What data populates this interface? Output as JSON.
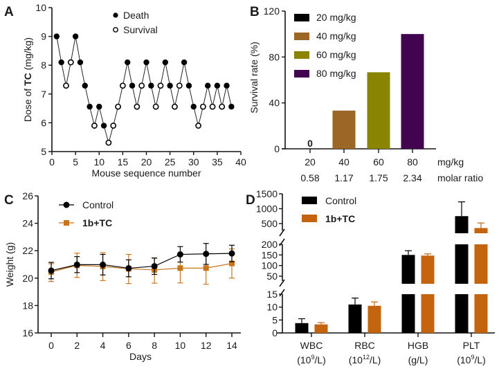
{
  "chart_data": [
    {
      "panel": "A",
      "type": "line",
      "title": "",
      "xlabel": "Mouse sequence number",
      "ylabel_prefix": "Dose of ",
      "ylabel_bold": "TC",
      "ylabel_suffix": " (mg/kg)",
      "xlim": [
        0,
        40
      ],
      "ylim": [
        5,
        10
      ],
      "xticks": [
        0,
        5,
        10,
        15,
        20,
        25,
        30,
        35,
        40
      ],
      "yticks": [
        5,
        6,
        7,
        8,
        9,
        10
      ],
      "legend": {
        "position": "top-center",
        "entries": [
          "Death",
          "Survival"
        ]
      },
      "points": [
        {
          "x": 1,
          "y": 9.0,
          "outcome": "Death"
        },
        {
          "x": 2,
          "y": 8.1,
          "outcome": "Death"
        },
        {
          "x": 3,
          "y": 7.29,
          "outcome": "Survival"
        },
        {
          "x": 4,
          "y": 8.1,
          "outcome": "Survival"
        },
        {
          "x": 5,
          "y": 9.0,
          "outcome": "Death"
        },
        {
          "x": 6,
          "y": 8.1,
          "outcome": "Death"
        },
        {
          "x": 7,
          "y": 7.29,
          "outcome": "Death"
        },
        {
          "x": 8,
          "y": 6.56,
          "outcome": "Death"
        },
        {
          "x": 9,
          "y": 5.9,
          "outcome": "Survival"
        },
        {
          "x": 10,
          "y": 6.56,
          "outcome": "Death"
        },
        {
          "x": 11,
          "y": 5.9,
          "outcome": "Death"
        },
        {
          "x": 12,
          "y": 5.31,
          "outcome": "Survival"
        },
        {
          "x": 13,
          "y": 5.9,
          "outcome": "Survival"
        },
        {
          "x": 14,
          "y": 6.56,
          "outcome": "Survival"
        },
        {
          "x": 15,
          "y": 7.29,
          "outcome": "Survival"
        },
        {
          "x": 16,
          "y": 8.1,
          "outcome": "Death"
        },
        {
          "x": 17,
          "y": 7.29,
          "outcome": "Death"
        },
        {
          "x": 18,
          "y": 6.56,
          "outcome": "Survival"
        },
        {
          "x": 19,
          "y": 7.29,
          "outcome": "Survival"
        },
        {
          "x": 20,
          "y": 8.1,
          "outcome": "Death"
        },
        {
          "x": 21,
          "y": 7.29,
          "outcome": "Death"
        },
        {
          "x": 22,
          "y": 6.56,
          "outcome": "Survival"
        },
        {
          "x": 23,
          "y": 7.29,
          "outcome": "Survival"
        },
        {
          "x": 24,
          "y": 8.1,
          "outcome": "Death"
        },
        {
          "x": 25,
          "y": 7.29,
          "outcome": "Death"
        },
        {
          "x": 26,
          "y": 6.56,
          "outcome": "Survival"
        },
        {
          "x": 27,
          "y": 7.29,
          "outcome": "Survival"
        },
        {
          "x": 28,
          "y": 8.1,
          "outcome": "Death"
        },
        {
          "x": 29,
          "y": 7.29,
          "outcome": "Death"
        },
        {
          "x": 30,
          "y": 6.56,
          "outcome": "Death"
        },
        {
          "x": 31,
          "y": 5.9,
          "outcome": "Survival"
        },
        {
          "x": 32,
          "y": 6.56,
          "outcome": "Survival"
        },
        {
          "x": 33,
          "y": 7.29,
          "outcome": "Death"
        },
        {
          "x": 34,
          "y": 6.56,
          "outcome": "Survival"
        },
        {
          "x": 35,
          "y": 7.29,
          "outcome": "Death"
        },
        {
          "x": 36,
          "y": 6.56,
          "outcome": "Survival"
        },
        {
          "x": 37,
          "y": 7.29,
          "outcome": "Death"
        },
        {
          "x": 38,
          "y": 6.56,
          "outcome": "Death"
        }
      ]
    },
    {
      "panel": "B",
      "type": "bar",
      "title": "",
      "xlabel": "",
      "ylabel": "Survival rate (%)",
      "ylim": [
        0,
        120
      ],
      "yticks": [
        0,
        40,
        80,
        120
      ],
      "categories": [
        "20",
        "40",
        "60",
        "80"
      ],
      "category_row2": [
        "0.58",
        "1.17",
        "1.75",
        "2.34"
      ],
      "category_unit_row1": "mg/kg",
      "category_unit_row2": "molar ratio",
      "values": [
        0,
        33.3,
        66.7,
        100
      ],
      "colors": [
        "#000000",
        "#9c6626",
        "#8a8403",
        "#43044f"
      ],
      "data_labels": [
        "0",
        "",
        "",
        ""
      ],
      "legend": {
        "position": "top-left",
        "entries": [
          "20 mg/kg",
          "40 mg/kg",
          "60 mg/kg",
          "80 mg/kg"
        ]
      }
    },
    {
      "panel": "C",
      "type": "line",
      "title": "",
      "xlabel": "Days",
      "ylabel": "Weight (g)",
      "xlim": [
        -1,
        15
      ],
      "ylim": [
        16,
        26
      ],
      "xticks": [
        0,
        2,
        4,
        6,
        8,
        10,
        12,
        14
      ],
      "yticks": [
        16,
        18,
        20,
        22,
        24,
        26
      ],
      "x": [
        0,
        2,
        4,
        6,
        8,
        10,
        12,
        14
      ],
      "legend": {
        "position": "top-left",
        "entries": [
          "Control",
          "1b+TC"
        ]
      },
      "series": [
        {
          "name": "Control",
          "color": "#000000",
          "marker": "circle",
          "values": [
            20.55,
            20.98,
            20.98,
            20.72,
            20.87,
            21.73,
            21.77,
            21.8
          ],
          "err_upper": [
            21.15,
            21.57,
            21.73,
            21.33,
            21.47,
            22.3,
            22.53,
            22.4
          ],
          "err_lower": [
            19.95,
            20.4,
            20.23,
            20.1,
            20.27,
            21.17,
            21.0,
            21.2
          ]
        },
        {
          "name": "1b+TC",
          "color": "#c8741b",
          "marker": "square",
          "values": [
            20.45,
            20.93,
            20.85,
            20.68,
            20.6,
            20.73,
            20.73,
            21.07
          ],
          "err_upper": [
            21.05,
            21.82,
            21.85,
            21.73,
            21.45,
            21.8,
            21.85,
            22.13
          ],
          "err_lower": [
            19.75,
            20.05,
            19.82,
            19.6,
            19.63,
            19.65,
            19.55,
            20.0
          ]
        }
      ]
    },
    {
      "panel": "D",
      "type": "bar",
      "title": "",
      "xlabel": "",
      "ylabel": "",
      "y_segments": [
        {
          "range": [
            0,
            15
          ],
          "ticks": [
            0,
            5,
            10,
            15
          ]
        },
        {
          "range": [
            30,
            200
          ],
          "ticks": [
            50,
            100,
            150,
            200
          ]
        },
        {
          "range": [
            250,
            1500
          ],
          "ticks": [
            500,
            1000,
            1500
          ]
        }
      ],
      "categories": [
        "WBC",
        "RBC",
        "HGB",
        "PLT"
      ],
      "category_units": [
        {
          "base": "(10",
          "sup": "9",
          "tail": "/L)"
        },
        {
          "base": "(10",
          "sup": "12",
          "tail": "/L)"
        },
        {
          "base": "(g/L)",
          "sup": "",
          "tail": ""
        },
        {
          "base": "(10",
          "sup": "9",
          "tail": "/L)"
        }
      ],
      "legend": {
        "position": "top-left",
        "entries": [
          "Control",
          "1b+TC"
        ]
      },
      "series": [
        {
          "name": "Control",
          "color": "#000000",
          "values": [
            3.8,
            11.0,
            150,
            750
          ],
          "err_upper": [
            5.5,
            13.5,
            170,
            1230
          ]
        },
        {
          "name": "1b+TC",
          "color": "#c5640f",
          "values": [
            3.3,
            10.5,
            147,
            350
          ],
          "err_upper": [
            4.0,
            12.0,
            155,
            520
          ]
        }
      ]
    }
  ],
  "panel_labels": [
    "A",
    "B",
    "C",
    "D"
  ]
}
